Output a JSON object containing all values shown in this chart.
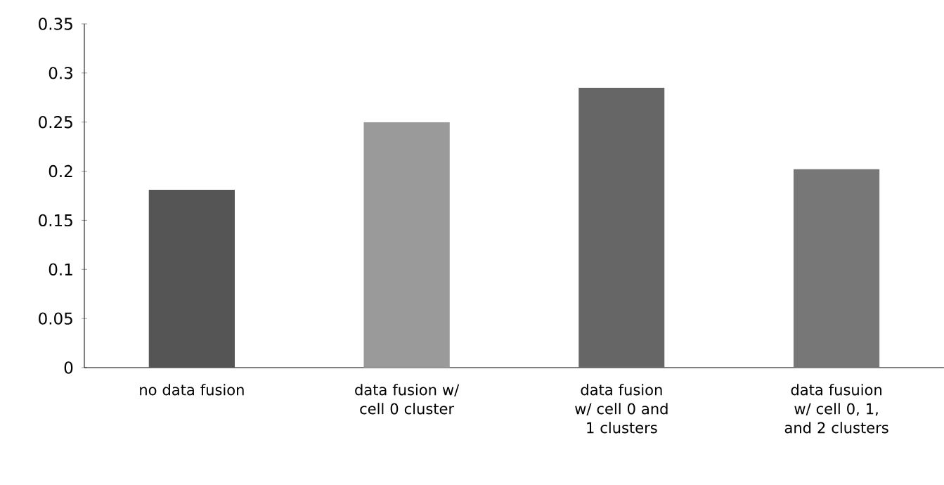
{
  "chart_data": {
    "type": "bar",
    "categories": [
      "no data fusion",
      "data fusion w/ cell 0 cluster",
      "data fusion w/ cell 0 and 1 clusters",
      "data fusuion w/ cell 0, 1, and 2 clusters"
    ],
    "values": [
      0.181,
      0.25,
      0.285,
      0.202
    ],
    "colors": [
      "#555555",
      "#9a9a9a",
      "#666666",
      "#777777"
    ],
    "ylim": [
      0,
      0.35
    ],
    "yticks": [
      0,
      0.05,
      0.1,
      0.15,
      0.2,
      0.25,
      0.3,
      0.35
    ],
    "grid": false
  }
}
